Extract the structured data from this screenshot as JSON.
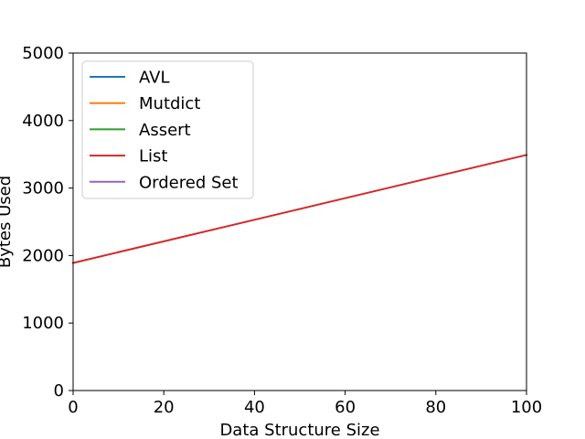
{
  "chart_data": {
    "type": "line",
    "title": "",
    "xlabel": "Data Structure Size",
    "ylabel": "Bytes Used",
    "xlim": [
      0,
      100
    ],
    "ylim": [
      0,
      5000
    ],
    "xticks": [
      0,
      20,
      40,
      60,
      80,
      100
    ],
    "yticks": [
      0,
      1000,
      2000,
      3000,
      4000,
      5000
    ],
    "grid": false,
    "legend_position": "top-left",
    "series": [
      {
        "name": "AVL",
        "color": "#1f77b4",
        "x": [],
        "y": []
      },
      {
        "name": "Mutdict",
        "color": "#ff7f0e",
        "x": [],
        "y": []
      },
      {
        "name": "Assert",
        "color": "#2ca02c",
        "x": [],
        "y": []
      },
      {
        "name": "List",
        "color": "#d62728",
        "x": [
          0,
          100
        ],
        "y": [
          1890,
          3490
        ]
      },
      {
        "name": "Ordered Set",
        "color": "#9467bd",
        "x": [],
        "y": []
      }
    ]
  }
}
